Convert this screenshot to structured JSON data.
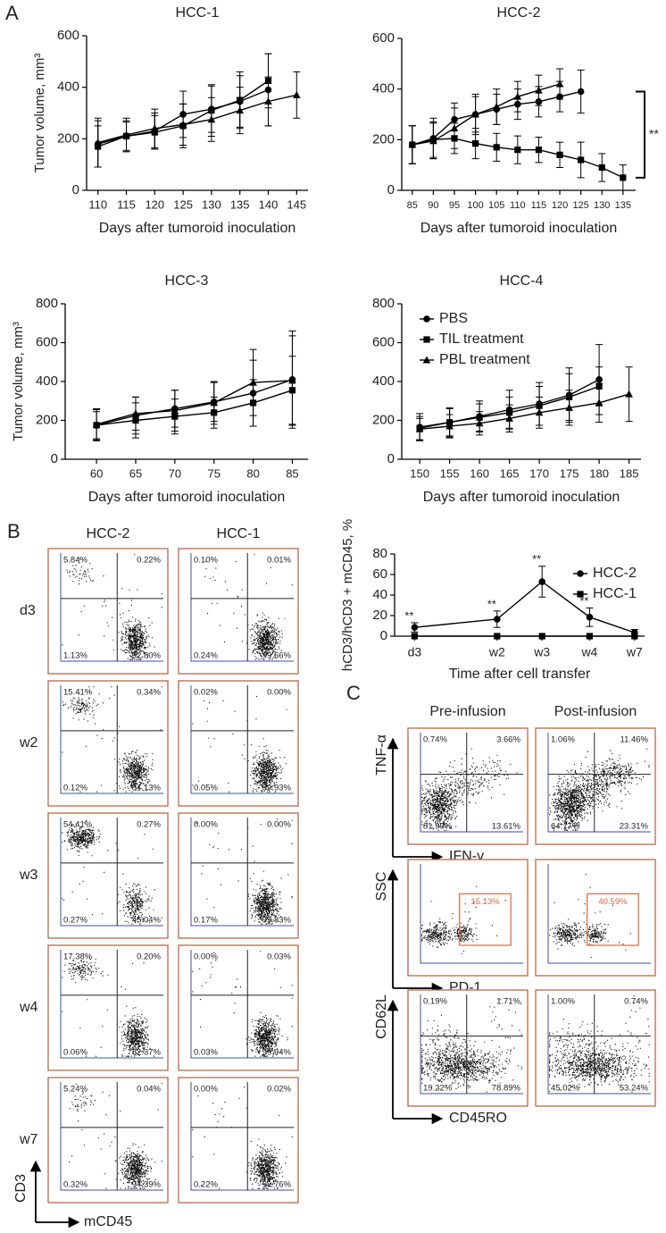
{
  "panels": {
    "a": "A",
    "b": "B",
    "c": "C"
  },
  "chart_data": [
    {
      "type": "line",
      "title": "HCC-1",
      "ylabel": "Tumor volume, mm³",
      "xlabel": "Days after tumoroid inoculation",
      "x": [
        110,
        115,
        120,
        125,
        130,
        135,
        140,
        145
      ],
      "xlim": [
        108,
        147
      ],
      "xticks": [
        110,
        115,
        120,
        125,
        130,
        135,
        140,
        145
      ],
      "ylim": [
        0,
        600
      ],
      "yticks": [
        0,
        200,
        400,
        600
      ],
      "series": [
        {
          "marker": "circle",
          "color": "#000000",
          "values": [
            180,
            210,
            230,
            295,
            315,
            345,
            390,
            null
          ],
          "errors": [
            90,
            60,
            70,
            90,
            90,
            100,
            140,
            null
          ]
        },
        {
          "marker": "square",
          "color": "#000000",
          "values": [
            170,
            210,
            225,
            250,
            310,
            350,
            425,
            null
          ],
          "errors": [
            80,
            55,
            65,
            85,
            100,
            110,
            105,
            null
          ]
        },
        {
          "marker": "triangle",
          "color": "#000000",
          "values": [
            185,
            215,
            240,
            255,
            275,
            310,
            345,
            370
          ],
          "errors": [
            95,
            65,
            75,
            80,
            85,
            90,
            95,
            90
          ]
        }
      ]
    },
    {
      "type": "line",
      "title": "HCC-2",
      "xlabel": "Days after tumoroid inoculation",
      "annotation": "**",
      "x": [
        85,
        90,
        95,
        100,
        105,
        110,
        115,
        120,
        125,
        130,
        135
      ],
      "xlim": [
        82.5,
        138
      ],
      "xticks": [
        85,
        90,
        95,
        100,
        105,
        110,
        115,
        120,
        125,
        130,
        135
      ],
      "ylim": [
        0,
        600
      ],
      "yticks": [
        0,
        200,
        400,
        600
      ],
      "series": [
        {
          "marker": "circle",
          "color": "#000000",
          "values": [
            180,
            205,
            280,
            300,
            320,
            340,
            350,
            370,
            390,
            null,
            null
          ],
          "errors": [
            75,
            80,
            65,
            70,
            60,
            60,
            60,
            60,
            85,
            null,
            null
          ]
        },
        {
          "marker": "square",
          "color": "#000000",
          "values": [
            180,
            200,
            205,
            185,
            170,
            160,
            160,
            140,
            120,
            90,
            50
          ],
          "errors": [
            75,
            70,
            60,
            60,
            55,
            55,
            50,
            50,
            70,
            55,
            50
          ]
        },
        {
          "marker": "triangle",
          "color": "#000000",
          "values": [
            180,
            195,
            245,
            300,
            330,
            370,
            395,
            420,
            null,
            null,
            null
          ],
          "errors": [
            75,
            70,
            80,
            80,
            70,
            60,
            60,
            60,
            null,
            null,
            null
          ]
        }
      ]
    },
    {
      "type": "line",
      "title": "HCC-3",
      "ylabel": "Tumor volume, mm³",
      "xlabel": "Days after tumoroid inoculation",
      "x": [
        60,
        65,
        70,
        75,
        80,
        85
      ],
      "xlim": [
        56,
        87
      ],
      "xticks": [
        60,
        65,
        70,
        75,
        80,
        85
      ],
      "ylim": [
        0,
        800
      ],
      "yticks": [
        0,
        200,
        400,
        600,
        800
      ],
      "series": [
        {
          "marker": "circle",
          "color": "#000000",
          "values": [
            175,
            225,
            260,
            295,
            340,
            410
          ],
          "errors": [
            80,
            95,
            95,
            100,
            170,
            250
          ]
        },
        {
          "marker": "square",
          "color": "#000000",
          "values": [
            175,
            200,
            220,
            240,
            290,
            355
          ],
          "errors": [
            70,
            90,
            90,
            80,
            120,
            175
          ]
        },
        {
          "marker": "triangle",
          "color": "#000000",
          "values": [
            180,
            235,
            250,
            290,
            395,
            405
          ],
          "errors": [
            80,
            85,
            105,
            110,
            170,
            230
          ]
        }
      ]
    },
    {
      "type": "line",
      "title": "HCC-4",
      "xlabel": "Days after tumoroid inoculation",
      "legend": "upper left",
      "x": [
        150,
        155,
        160,
        165,
        170,
        175,
        180,
        185
      ],
      "xlim": [
        147,
        187
      ],
      "xticks": [
        150,
        155,
        160,
        165,
        170,
        175,
        180,
        185
      ],
      "ylim": [
        0,
        800
      ],
      "yticks": [
        0,
        200,
        400,
        600,
        800
      ],
      "series": [
        {
          "name": "PBS",
          "marker": "circle",
          "color": "#000000",
          "values": [
            165,
            190,
            220,
            255,
            285,
            330,
            410,
            null
          ],
          "errors": [
            70,
            75,
            80,
            100,
            110,
            140,
            180,
            null
          ]
        },
        {
          "name": "TIL treatment",
          "marker": "square",
          "color": "#000000",
          "values": [
            160,
            190,
            215,
            240,
            275,
            320,
            375,
            null
          ],
          "errors": [
            60,
            70,
            70,
            80,
            100,
            120,
            100,
            null
          ]
        },
        {
          "name": "PBL treatment",
          "marker": "triangle",
          "color": "#000000",
          "values": [
            155,
            170,
            185,
            210,
            240,
            265,
            290,
            335
          ],
          "errors": [
            55,
            60,
            60,
            70,
            80,
            90,
            100,
            140
          ]
        }
      ]
    },
    {
      "type": "line",
      "ylabel": "hCD3/hCD3 + mCD45, %",
      "xlabel": "Time after cell transfer",
      "legend": "upper right",
      "categories": [
        "d3",
        "w2",
        "w3",
        "w4",
        "w7"
      ],
      "ylim": [
        0,
        80
      ],
      "yticks": [
        0,
        20,
        40,
        60,
        80
      ],
      "value_annotations": [
        "**",
        "**",
        "**",
        "**",
        null
      ],
      "series": [
        {
          "name": "HCC-2",
          "marker": "circle",
          "color": "#000000",
          "values": [
            8.5,
            16.5,
            53,
            18.5,
            3.5
          ],
          "errors": [
            4.5,
            8,
            15,
            9,
            3
          ]
        },
        {
          "name": "HCC-1",
          "marker": "square",
          "color": "#000000",
          "values": [
            0,
            0,
            0,
            0,
            0
          ],
          "errors": [
            null,
            null,
            null,
            null,
            null
          ]
        }
      ]
    }
  ],
  "flow_b": {
    "columns": [
      "HCC-2",
      "HCC-1"
    ],
    "y_axis": "CD3",
    "x_axis": "mCD45",
    "rows": [
      {
        "label": "d3",
        "plots": [
          [
            "5.84%",
            "0.22%",
            "1.13%",
            "92.80%"
          ],
          [
            "0.10%",
            "0.01%",
            "0.24%",
            "99.66%"
          ]
        ]
      },
      {
        "label": "w2",
        "plots": [
          [
            "15.41%",
            "0.34%",
            "0.12%",
            "84.13%"
          ],
          [
            "0.02%",
            "0.00%",
            "0.05%",
            "99.93%"
          ]
        ]
      },
      {
        "label": "w3",
        "plots": [
          [
            "54.41%",
            "0.27%",
            "0.27%",
            "45.04%"
          ],
          [
            "0.00%",
            "0.00%",
            "0.17%",
            "99.83%"
          ]
        ]
      },
      {
        "label": "w4",
        "plots": [
          [
            "17.38%",
            "0.20%",
            "0.06%",
            "82.37%"
          ],
          [
            "0.00%",
            "0.03%",
            "0.03%",
            "99.94%"
          ]
        ]
      },
      {
        "label": "w7",
        "plots": [
          [
            "5.24%",
            "0.04%",
            "0.32%",
            "94.39%"
          ],
          [
            "0.00%",
            "0.02%",
            "0.22%",
            "99.76%"
          ]
        ]
      }
    ]
  },
  "flow_c": {
    "columns": [
      "Pre-infusion",
      "Post-infusion"
    ],
    "rows": [
      {
        "y_axis": "TNF-α",
        "x_axis": "IFN-γ",
        "plots": [
          [
            "0.74%",
            "3.66%",
            "81.99%",
            "13.61%"
          ],
          [
            "1.06%",
            "11.46%",
            "64.17%",
            "23.31%"
          ]
        ]
      },
      {
        "y_axis": "SSC",
        "x_axis": "PD-1",
        "gate": true,
        "plots": [
          [
            "15.13%"
          ],
          [
            "40.59%"
          ]
        ]
      },
      {
        "y_axis": "CD62L",
        "x_axis": "CD45RO",
        "plots": [
          [
            "0.19%",
            "1.71%",
            "19.22%",
            "78.89%"
          ],
          [
            "1.00%",
            "0.74%",
            "45.02%",
            "53.24%"
          ]
        ]
      }
    ]
  }
}
